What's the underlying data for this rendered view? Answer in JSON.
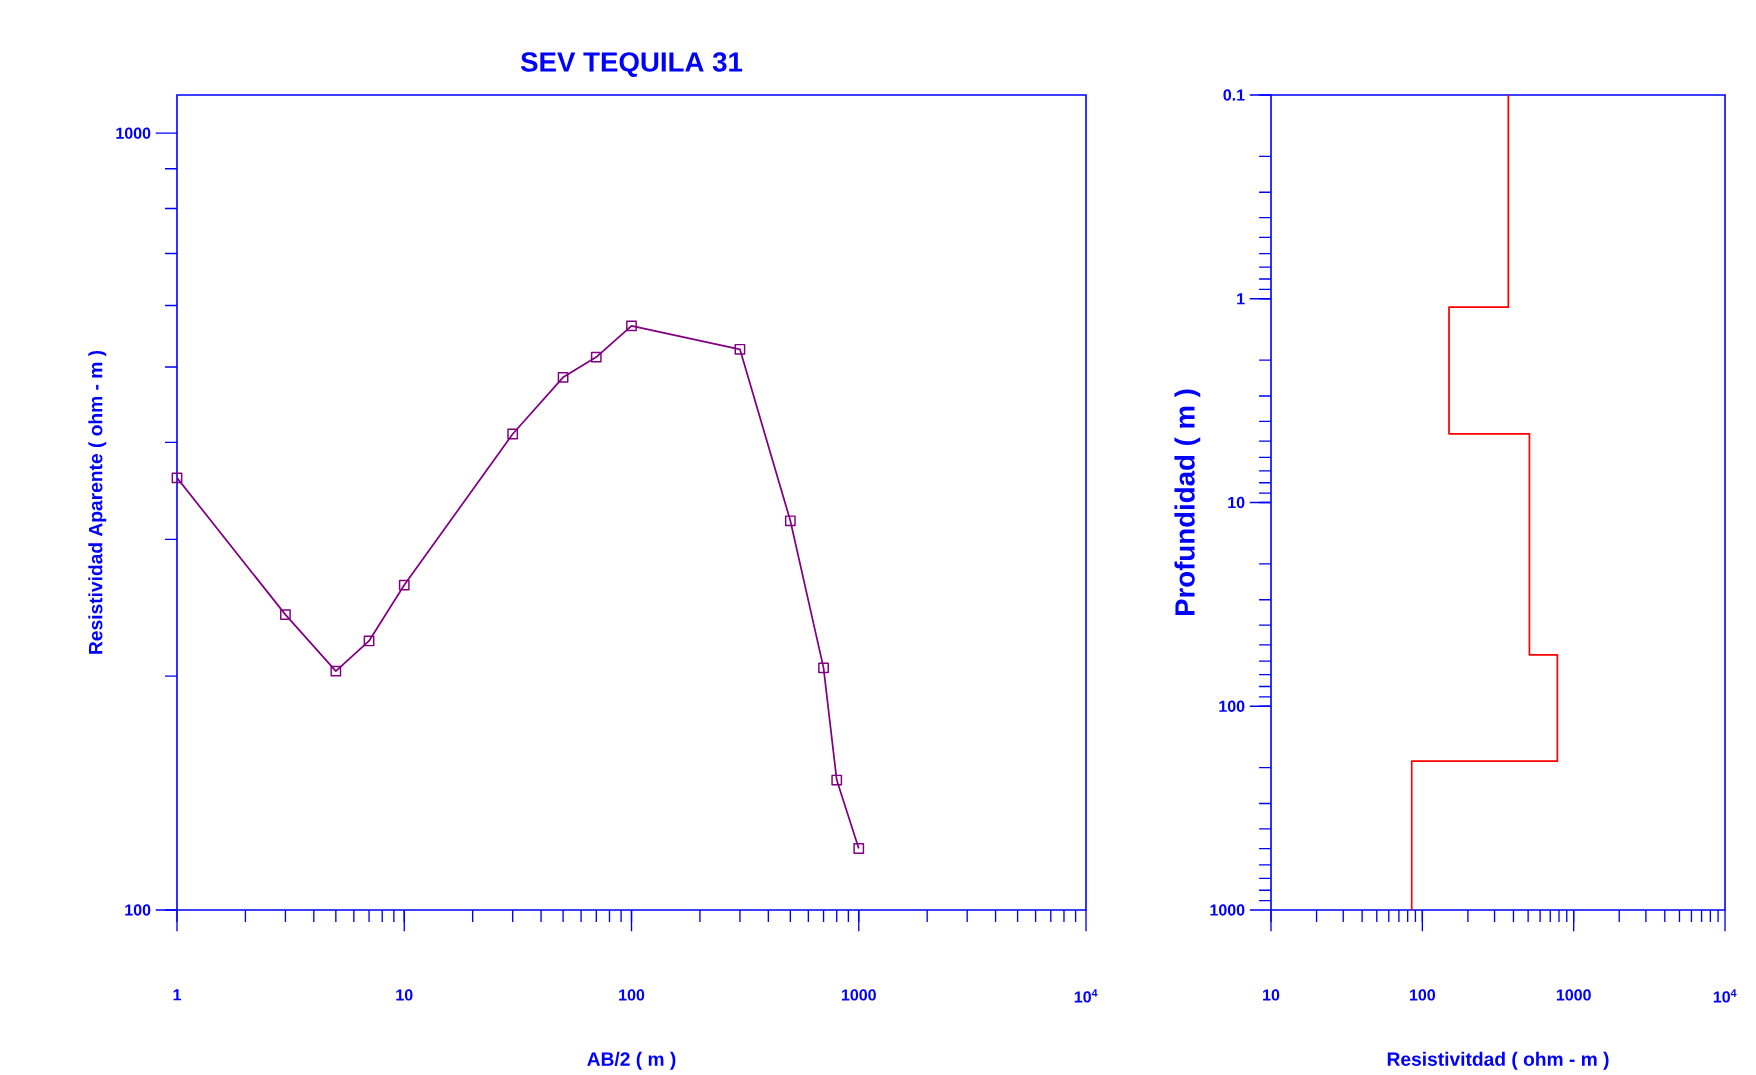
{
  "chart_data": [
    {
      "type": "line",
      "title": "SEV TEQUILA 31",
      "xlabel": "AB/2     ( m )",
      "ylabel": "Resistividad Aparente ( ohm - m )",
      "log": "xy",
      "marker": "square",
      "xlim": [
        1,
        10000
      ],
      "ylim": [
        100,
        1120
      ],
      "xticks": [
        1,
        10,
        100,
        1000,
        {
          "value": 10000,
          "label": "10$^{4}$"
        }
      ],
      "yticks": [
        100,
        1000
      ],
      "x": [
        1,
        3,
        5,
        7,
        10,
        30,
        50,
        70,
        100,
        300,
        500,
        700,
        800,
        1000
      ],
      "series": [
        {
          "color": "#800080",
          "values": [
            360,
            240,
            203,
            222,
            262,
            410,
            485,
            515,
            565,
            527,
            317,
            205,
            147,
            120
          ]
        }
      ]
    },
    {
      "type": "line",
      "xlabel": "Resistivitdad    ( ohm - m )",
      "ylabel": "Profundidad ( m )",
      "log": "xy",
      "marker": "none",
      "xlim": [
        10,
        10000
      ],
      "ylim": [
        1000,
        0.1
      ],
      "xticks": [
        10,
        100,
        1000,
        {
          "value": 10000,
          "label": "10$^{4}$"
        }
      ],
      "yticks": [
        0.1,
        1,
        10,
        100,
        1000
      ],
      "series": [
        {
          "color": "#ff0000",
          "x": [
            370,
            370,
            150,
            150,
            510,
            510,
            780,
            780,
            85,
            85
          ],
          "values": [
            0.1,
            1.1,
            1.1,
            4.6,
            4.6,
            56,
            56,
            186,
            186,
            1000
          ]
        }
      ]
    }
  ]
}
